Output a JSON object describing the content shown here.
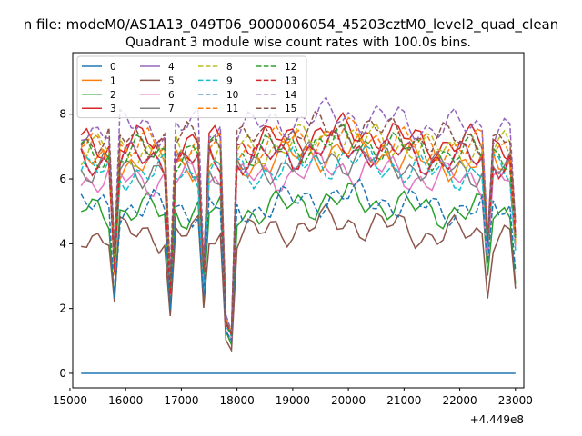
{
  "chart_data": {
    "type": "line",
    "suptitle": "n file: modeM0/AS1A13_049T06_9000006054_45203cztM0_level2_quad_clean",
    "title": "Quadrant 3 module wise count rates with 100.0s bins.",
    "xlabel": "",
    "ylabel": "",
    "x_offset_label": "+4.449e8",
    "xlim": [
      15050,
      23150
    ],
    "ylim": [
      -0.45,
      9.9
    ],
    "x_ticks": [
      15000,
      16000,
      17000,
      18000,
      19000,
      20000,
      21000,
      22000,
      23000
    ],
    "x_tick_labels": [
      "15000",
      "16000",
      "17000",
      "18000",
      "19000",
      "20000",
      "21000",
      "22000",
      "23000"
    ],
    "y_ticks": [
      0,
      2,
      4,
      6,
      8
    ],
    "y_tick_labels": [
      "0",
      "2",
      "4",
      "6",
      "8"
    ],
    "legend": {
      "position": "upper-left",
      "ncol": 4
    },
    "x": [
      15200,
      15300,
      15400,
      15500,
      15600,
      15700,
      15800,
      15900,
      16000,
      16100,
      16200,
      16300,
      16400,
      16500,
      16600,
      16700,
      16800,
      16900,
      17000,
      17100,
      17200,
      17300,
      17400,
      17500,
      17600,
      17700,
      17800,
      17900,
      18000,
      18100,
      18200,
      18300,
      18400,
      18500,
      18600,
      18700,
      18800,
      18900,
      19000,
      19100,
      19200,
      19300,
      19400,
      19500,
      19600,
      19700,
      19800,
      19900,
      20000,
      20100,
      20200,
      20300,
      20400,
      20500,
      20600,
      20700,
      20800,
      20900,
      21000,
      21100,
      21200,
      21300,
      21400,
      21500,
      21600,
      21700,
      21800,
      21900,
      22000,
      22100,
      22200,
      22300,
      22400,
      22500,
      22600,
      22700,
      22800,
      22900,
      23000
    ],
    "dips": [
      {
        "x": 15800,
        "factor": 0.5
      },
      {
        "x": 16800,
        "factor": 0.4
      },
      {
        "x": 17400,
        "factor": 0.45
      },
      {
        "x": 17800,
        "factor": 0.24
      },
      {
        "x": 17900,
        "factor": 0.18
      },
      {
        "x": 22500,
        "factor": 0.6
      },
      {
        "x": 23000,
        "factor": 0.62
      }
    ],
    "series": [
      {
        "name": "0",
        "color": "#1f77b4",
        "dash": "solid",
        "level": 0.0
      },
      {
        "name": "1",
        "color": "#ff7f0e",
        "dash": "solid",
        "level": 6.5
      },
      {
        "name": "2",
        "color": "#2ca02c",
        "dash": "solid",
        "level": 5.0
      },
      {
        "name": "3",
        "color": "#d62728",
        "dash": "solid",
        "level": 7.1
      },
      {
        "name": "4",
        "color": "#9467bd",
        "dash": "solid",
        "level": 6.6
      },
      {
        "name": "5",
        "color": "#8c564b",
        "dash": "solid",
        "level": 4.3
      },
      {
        "name": "6",
        "color": "#e377c2",
        "dash": "solid",
        "level": 6.0
      },
      {
        "name": "7",
        "color": "#7f7f7f",
        "dash": "solid",
        "level": 6.3
      },
      {
        "name": "8",
        "color": "#bcbd22",
        "dash": "dashed",
        "level": 6.9
      },
      {
        "name": "9",
        "color": "#17becf",
        "dash": "dashed",
        "level": 6.2
      },
      {
        "name": "10",
        "color": "#1f77b4",
        "dash": "dashed",
        "level": 5.1
      },
      {
        "name": "11",
        "color": "#ff7f0e",
        "dash": "dashed",
        "level": 7.0
      },
      {
        "name": "12",
        "color": "#2ca02c",
        "dash": "dashed",
        "level": 6.8
      },
      {
        "name": "13",
        "color": "#d62728",
        "dash": "dashed",
        "level": 6.6
      },
      {
        "name": "14",
        "color": "#9467bd",
        "dash": "dashed",
        "level": 7.6
      },
      {
        "name": "15",
        "color": "#8c564b",
        "dash": "dashed",
        "level": 7.2
      }
    ]
  }
}
